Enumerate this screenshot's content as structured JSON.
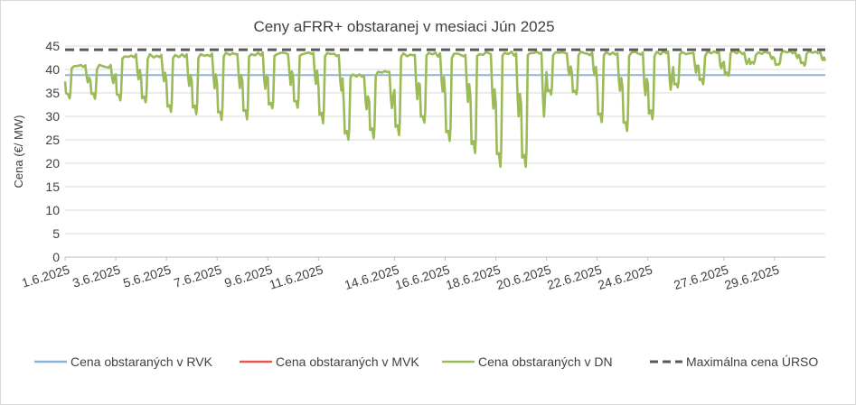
{
  "chart_data": {
    "type": "line",
    "title": "Ceny aFRR+ obstaranej v mesiaci Jún 2025",
    "ylabel": "Cena (€/ MW)",
    "xlabel": "",
    "ylim": [
      0,
      45
    ],
    "yticks": [
      0,
      5,
      10,
      15,
      20,
      25,
      30,
      35,
      40,
      45
    ],
    "x_range": [
      "1.6.2025",
      "30.6.2025"
    ],
    "x_tick_labels": [
      "1.6.2025",
      "3.6.2025",
      "5.6.2025",
      "7.6.2025",
      "9.6.2025",
      "11.6.2025",
      "14.6.2025",
      "16.6.2025",
      "18.6.2025",
      "20.6.2025",
      "22.6.2025",
      "24.6.2025",
      "27.6.2025",
      "29.6.2025"
    ],
    "grid": true,
    "legend_position": "bottom",
    "series": [
      {
        "name": "Cena obstaraných v RVK",
        "color": "#8fb4dc",
        "style": "solid",
        "constant": 38.8
      },
      {
        "name": "Cena obstaraných v MVK",
        "color": "#e05a50",
        "style": "solid",
        "constant": null
      },
      {
        "name": "Cena obstaraných v DN",
        "color": "#9bbb59",
        "style": "solid",
        "x": [
          "1.6.2025",
          "2.6.2025",
          "3.6.2025",
          "4.6.2025",
          "5.6.2025",
          "6.6.2025",
          "7.6.2025",
          "8.6.2025",
          "9.6.2025",
          "10.6.2025",
          "11.6.2025",
          "12.6.2025",
          "13.6.2025",
          "14.6.2025",
          "15.6.2025",
          "16.6.2025",
          "17.6.2025",
          "18.6.2025",
          "19.6.2025",
          "20.6.2025",
          "21.6.2025",
          "22.6.2025",
          "23.6.2025",
          "24.6.2025",
          "25.6.2025",
          "26.6.2025",
          "27.6.2025",
          "28.6.2025",
          "29.6.2025",
          "30.6.2025"
        ],
        "daily_max": [
          40.8,
          40.7,
          43.0,
          43.0,
          43.0,
          43.2,
          43.5,
          43.5,
          43.5,
          43.5,
          43.2,
          38.8,
          39.5,
          43.3,
          43.3,
          43.3,
          43.5,
          43.5,
          43.5,
          43.5,
          43.5,
          43.5,
          43.7,
          43.7,
          43.7,
          43.7,
          43.8,
          43.8,
          43.8,
          43.8
        ],
        "daily_min": [
          34.0,
          34.0,
          33.5,
          33.0,
          31.0,
          30.5,
          29.5,
          29.5,
          31.5,
          32.0,
          28.8,
          25.0,
          25.5,
          26.0,
          28.5,
          25.0,
          22.0,
          19.5,
          19.0,
          34.5,
          34.5,
          28.8,
          26.8,
          29.3,
          36.0,
          37.0,
          38.5,
          41.0,
          41.0,
          41.0
        ]
      },
      {
        "name": "Maximálna cena ÚRSO",
        "color": "#595959",
        "style": "dashed",
        "constant": 44.2
      }
    ]
  }
}
